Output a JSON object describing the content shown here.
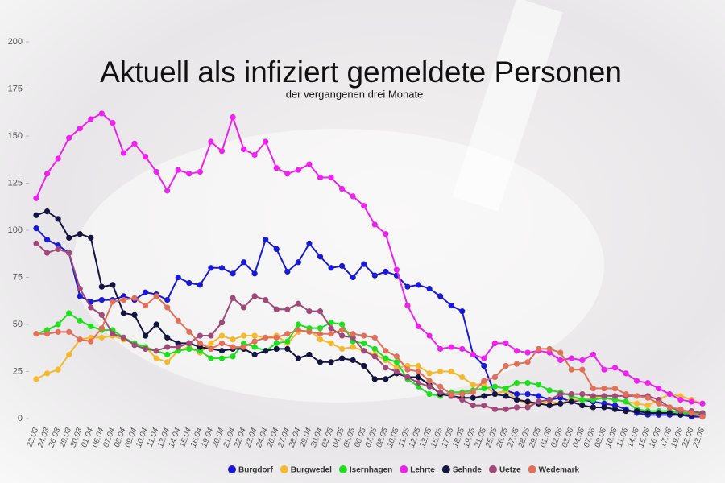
{
  "chart_data": {
    "type": "line",
    "title": "Aktuell als infiziert gemeldete Personen",
    "subtitle": "der vergangenen drei Monate",
    "categories": [
      "23.03",
      "24.03",
      "26.03",
      "29.03",
      "30.03",
      "01.04",
      "06.04",
      "07.04",
      "08.04",
      "09.04",
      "10.04",
      "11.04",
      "13.04",
      "14.04",
      "15.04",
      "16.04",
      "19.04",
      "20.04",
      "21.04",
      "22.04",
      "23.04",
      "24.04",
      "26.04",
      "27.04",
      "28.04",
      "29.04",
      "30.04",
      "03.05",
      "04.05",
      "05.05",
      "06.05",
      "07.05",
      "08.05",
      "10.05",
      "11.05",
      "12.05",
      "13.05",
      "15.05",
      "17.05",
      "18.05",
      "19.05",
      "21.05",
      "25.05",
      "26.05",
      "27.05",
      "28.05",
      "29.05",
      "01.06",
      "02.06",
      "03.06",
      "04.06",
      "07.06",
      "08.06",
      "10.06",
      "11.06",
      "14.06",
      "15.06",
      "16.06",
      "17.06",
      "19.06",
      "22.06",
      "23.06"
    ],
    "series": [
      {
        "name": "Burgdorf",
        "color": "#1a1ad6",
        "values": [
          101,
          95,
          92,
          88,
          65,
          62,
          63,
          63,
          65,
          63,
          67,
          66,
          63,
          75,
          72,
          71,
          80,
          80,
          77,
          83,
          77,
          95,
          90,
          78,
          83,
          93,
          86,
          80,
          81,
          75,
          82,
          76,
          78,
          76,
          70,
          71,
          69,
          65,
          60,
          57,
          34,
          28,
          13,
          15,
          13,
          13,
          12,
          10,
          11,
          9,
          10,
          9,
          8,
          7,
          5,
          3,
          2,
          2,
          2,
          2,
          1,
          1
        ]
      },
      {
        "name": "Burgwedel",
        "color": "#f5b82e",
        "values": [
          21,
          24,
          26,
          34,
          42,
          43,
          43,
          44,
          42,
          40,
          38,
          32,
          30,
          36,
          38,
          35,
          40,
          44,
          42,
          44,
          44,
          43,
          44,
          40,
          46,
          47,
          42,
          40,
          37,
          38,
          36,
          34,
          31,
          27,
          28,
          28,
          24,
          25,
          25,
          22,
          18,
          18,
          13,
          15,
          10,
          8,
          8,
          9,
          8,
          10,
          10,
          11,
          11,
          10,
          9,
          8,
          7,
          10,
          13,
          12,
          10,
          8
        ]
      },
      {
        "name": "Isernhagen",
        "color": "#1ee01e",
        "values": [
          45,
          47,
          50,
          56,
          52,
          49,
          47,
          47,
          43,
          40,
          38,
          36,
          34,
          36,
          37,
          36,
          32,
          32,
          33,
          40,
          38,
          36,
          40,
          41,
          50,
          48,
          48,
          51,
          50,
          41,
          40,
          37,
          32,
          30,
          21,
          17,
          13,
          12,
          14,
          14,
          15,
          16,
          17,
          16,
          19,
          19,
          18,
          15,
          14,
          12,
          10,
          10,
          11,
          10,
          9,
          5,
          4,
          4,
          4,
          3,
          3,
          3
        ]
      },
      {
        "name": "Lehrte",
        "color": "#ee22ee",
        "values": [
          117,
          130,
          138,
          149,
          154,
          159,
          162,
          157,
          141,
          146,
          139,
          131,
          121,
          132,
          130,
          131,
          147,
          142,
          160,
          143,
          140,
          147,
          133,
          130,
          132,
          135,
          128,
          128,
          122,
          118,
          113,
          103,
          98,
          79,
          60,
          49,
          44,
          37,
          38,
          37,
          34,
          32,
          40,
          40,
          36,
          35,
          36,
          35,
          31,
          32,
          31,
          34,
          26,
          27,
          24,
          20,
          19,
          16,
          13,
          10,
          9,
          8
        ]
      },
      {
        "name": "Sehnde",
        "color": "#141440",
        "values": [
          108,
          110,
          106,
          96,
          98,
          96,
          70,
          71,
          56,
          55,
          44,
          50,
          43,
          40,
          40,
          38,
          37,
          36,
          37,
          37,
          34,
          36,
          37,
          37,
          32,
          34,
          30,
          30,
          32,
          31,
          28,
          21,
          21,
          24,
          22,
          22,
          18,
          13,
          12,
          11,
          11,
          12,
          13,
          12,
          10,
          9,
          8,
          7,
          8,
          9,
          7,
          6,
          6,
          5,
          4,
          4,
          3,
          3,
          3,
          2,
          2,
          2
        ]
      },
      {
        "name": "Uetze",
        "color": "#a04a7a",
        "values": [
          93,
          88,
          90,
          88,
          69,
          59,
          55,
          45,
          43,
          39,
          37,
          36,
          38,
          38,
          40,
          44,
          44,
          51,
          64,
          59,
          65,
          63,
          58,
          58,
          61,
          57,
          57,
          48,
          44,
          43,
          36,
          33,
          27,
          25,
          22,
          19,
          17,
          14,
          12,
          10,
          7,
          7,
          5,
          5,
          6,
          6,
          9,
          10,
          13,
          13,
          13,
          12,
          12,
          12,
          12,
          12,
          12,
          10,
          6,
          4,
          4,
          3
        ]
      },
      {
        "name": "Wedemark",
        "color": "#e0705a",
        "values": [
          45,
          45,
          46,
          46,
          42,
          41,
          48,
          62,
          63,
          64,
          60,
          65,
          59,
          52,
          46,
          40,
          37,
          40,
          38,
          38,
          41,
          43,
          43,
          45,
          47,
          46,
          45,
          45,
          47,
          45,
          44,
          43,
          36,
          33,
          26,
          25,
          20,
          17,
          13,
          13,
          14,
          20,
          22,
          28,
          29,
          30,
          37,
          37,
          35,
          26,
          26,
          16,
          16,
          16,
          13,
          12,
          11,
          8,
          6,
          5,
          3,
          1
        ]
      }
    ],
    "ylim": [
      0,
      200
    ],
    "yticks": [
      0,
      25,
      50,
      75,
      100,
      125,
      150,
      175,
      200
    ]
  }
}
